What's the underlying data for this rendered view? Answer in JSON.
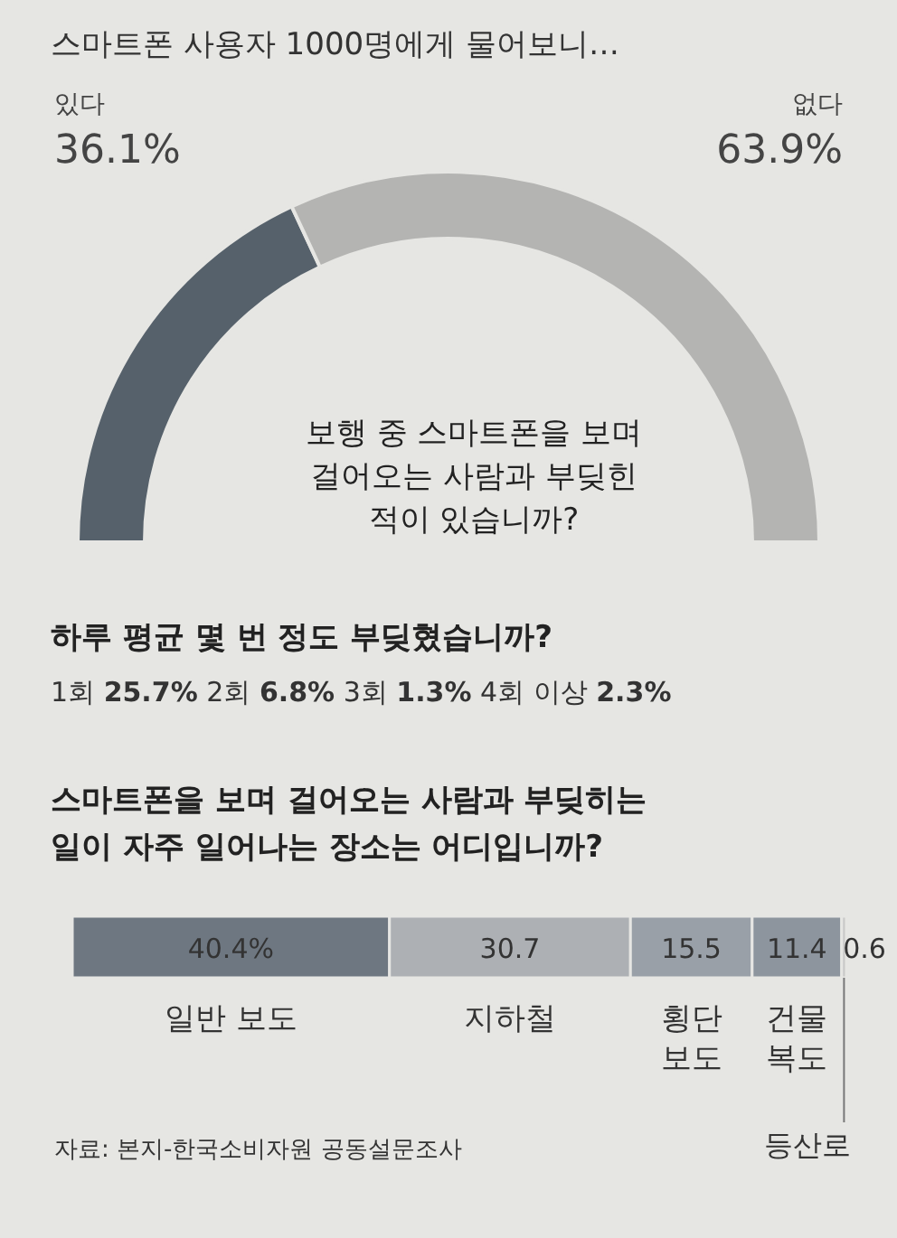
{
  "chart_data": [
    {
      "type": "donut",
      "title": "스마트폰 사용자 1000명에게 물어보니…",
      "subtitle": "보행 중 스마트폰을 보며 걸어오는 사람과 부딪힌 적이 있습니까?",
      "categories": [
        "있다",
        "없다"
      ],
      "values": [
        36.1,
        63.9
      ],
      "colors": [
        "#56616b",
        "#b4b4b2"
      ],
      "value_labels": [
        "36.1%",
        "63.9%"
      ]
    },
    {
      "type": "other",
      "title": "하루 평균 몇 번 정도 부딪혔습니까?",
      "categories": [
        "1회",
        "2회",
        "3회",
        "4회 이상"
      ],
      "values": [
        25.7,
        6.8,
        1.3,
        2.3
      ],
      "value_labels": [
        "25.7%",
        "6.8%",
        "1.3%",
        "2.3%"
      ]
    },
    {
      "type": "bar",
      "orientation": "horizontal",
      "stacked": true,
      "title": "스마트폰을 보며 걸어오는 사람과 부딪히는 일이 자주 일어나는 장소는 어디입니까?",
      "categories": [
        null
      ],
      "series": [
        {
          "name": "일반 보도",
          "color": "#6e7781",
          "values": [
            40.4
          ],
          "value_labels": [
            "40.4%"
          ]
        },
        {
          "name": "지하철",
          "color": "#adb0b4",
          "values": [
            30.7
          ],
          "value_labels": [
            "30.7"
          ]
        },
        {
          "name": "횡단 보도",
          "color": "#99a0a8",
          "values": [
            15.5
          ],
          "value_labels": [
            "15.5"
          ]
        },
        {
          "name": "건물 복도",
          "color": "#8d959e",
          "values": [
            11.4
          ],
          "value_labels": [
            "11.4"
          ]
        },
        {
          "name": "등산로",
          "color": "#c9c9c8",
          "values": [
            0.6
          ],
          "value_labels": [
            "0.6"
          ]
        }
      ],
      "annotations": [
        "자료: 본지-한국소비자원 공동설문조사"
      ]
    }
  ]
}
